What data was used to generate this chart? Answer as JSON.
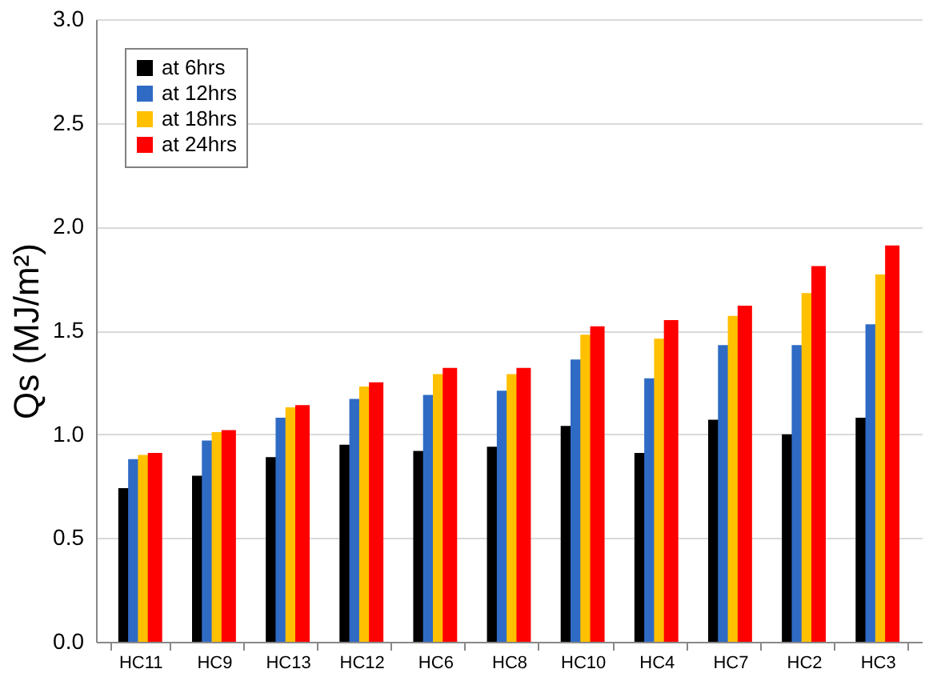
{
  "chart_data": {
    "type": "bar",
    "ylabel": "Qs (MJ/m²)",
    "categories": [
      "HC11",
      "HC9",
      "HC13",
      "HC12",
      "HC6",
      "HC8",
      "HC10",
      "HC4",
      "HC7",
      "HC2",
      "HC3"
    ],
    "series": [
      {
        "name": "at 6hrs",
        "color": "#000000",
        "values": [
          0.74,
          0.8,
          0.89,
          0.95,
          0.92,
          0.94,
          1.04,
          0.91,
          1.07,
          1.0,
          1.08
        ]
      },
      {
        "name": "at 12hrs",
        "color": "#2f6bc4",
        "values": [
          0.88,
          0.97,
          1.08,
          1.17,
          1.19,
          1.21,
          1.36,
          1.27,
          1.43,
          1.43,
          1.53
        ]
      },
      {
        "name": "at 18hrs",
        "color": "#ffc000",
        "values": [
          0.9,
          1.01,
          1.13,
          1.23,
          1.29,
          1.29,
          1.48,
          1.46,
          1.57,
          1.68,
          1.77
        ]
      },
      {
        "name": "at 24hrs",
        "color": "#ff0000",
        "values": [
          0.91,
          1.02,
          1.14,
          1.25,
          1.32,
          1.32,
          1.52,
          1.55,
          1.62,
          1.81,
          1.91
        ]
      }
    ],
    "ylim": [
      0,
      3.0
    ],
    "yticks": [
      {
        "value": 0,
        "label": "0.0"
      },
      0.5,
      {
        "value": 1,
        "label": "1.0"
      },
      1.5,
      {
        "value": 2,
        "label": "2.0"
      },
      2.5,
      {
        "value": 3,
        "label": "3.0"
      }
    ],
    "grid": "y",
    "legend": "top left"
  }
}
